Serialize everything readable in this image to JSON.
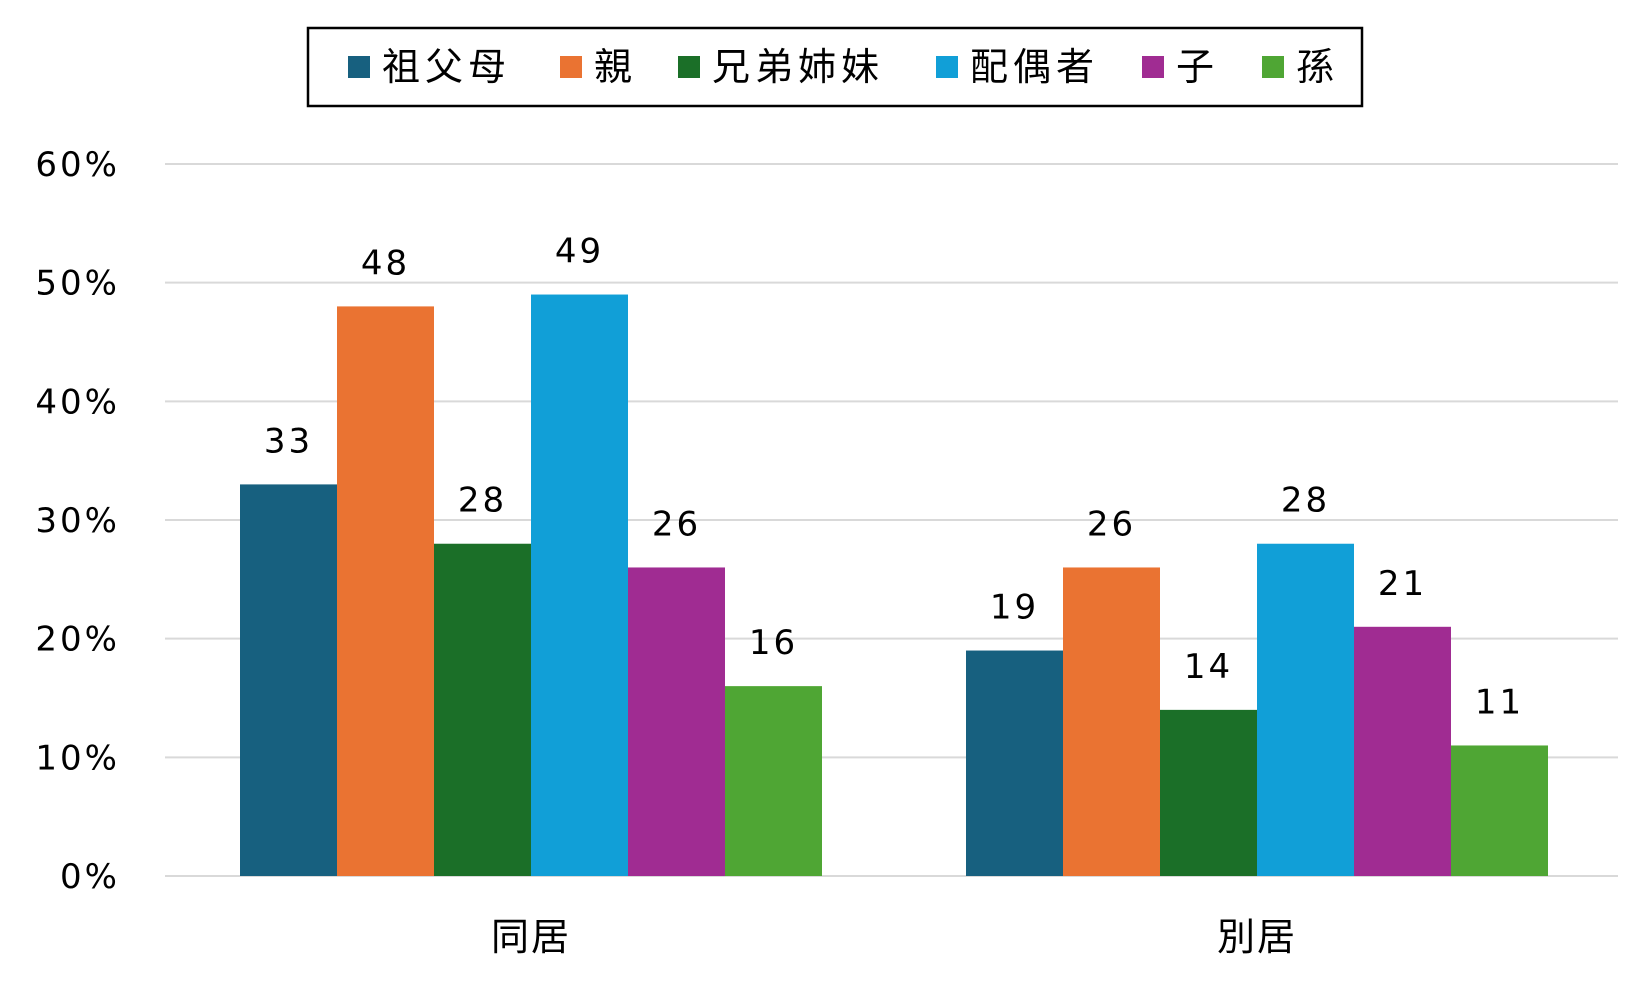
{
  "chart_data": {
    "type": "bar",
    "categories": [
      "同居",
      "別居"
    ],
    "series": [
      {
        "name": "祖父母",
        "values": [
          33,
          19
        ],
        "value_labels": [
          "33",
          "19"
        ],
        "color": "#17607f"
      },
      {
        "name": "親",
        "values": [
          48,
          26
        ],
        "value_labels": [
          "48",
          "26"
        ],
        "color": "#ea7332"
      },
      {
        "name": "兄弟姉妹",
        "values": [
          28,
          14
        ],
        "value_labels": [
          "28",
          "14"
        ],
        "color": "#1b6f28"
      },
      {
        "name": "配偶者",
        "values": [
          49,
          28
        ],
        "value_labels": [
          "49",
          "28"
        ],
        "color": "#119fd7"
      },
      {
        "name": "子",
        "values": [
          26,
          21
        ],
        "value_labels": [
          "26",
          "21"
        ],
        "color": "#a02c92"
      },
      {
        "name": "孫",
        "values": [
          16,
          11
        ],
        "value_labels": [
          "16",
          "11"
        ],
        "color": "#4fa634"
      }
    ],
    "ylim": [
      0,
      60
    ],
    "yticks": [
      0,
      10,
      20,
      30,
      40,
      50,
      60
    ],
    "ytick_labels": [
      "0%",
      "10%",
      "20%",
      "30%",
      "40%",
      "50%",
      "60%"
    ],
    "grid": true,
    "legend": "top",
    "title": "",
    "xlabel": "",
    "ylabel": ""
  }
}
